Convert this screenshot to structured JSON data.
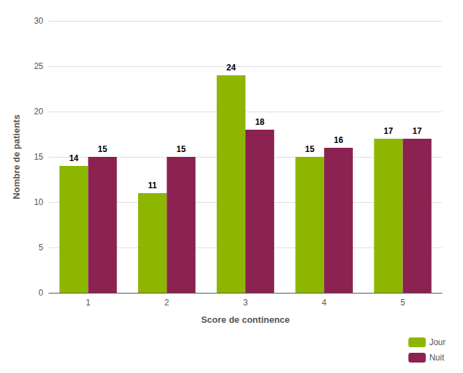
{
  "chart_data": {
    "type": "bar",
    "xlabel": "Score de continence",
    "ylabel": "Nombre de patients",
    "categories": [
      1,
      2,
      3,
      4,
      5
    ],
    "series": [
      {
        "name": "Jour",
        "color": "#8DB600",
        "values": [
          14,
          11,
          24,
          15,
          17
        ]
      },
      {
        "name": "Nuit",
        "color": "#8B2252",
        "values": [
          15,
          15,
          18,
          16,
          17
        ]
      }
    ],
    "ylim": [
      0,
      30
    ],
    "yticks": [
      0,
      5,
      10,
      15,
      20,
      25,
      30
    ],
    "grid": true,
    "legend": "lower right",
    "data_labels": true
  }
}
